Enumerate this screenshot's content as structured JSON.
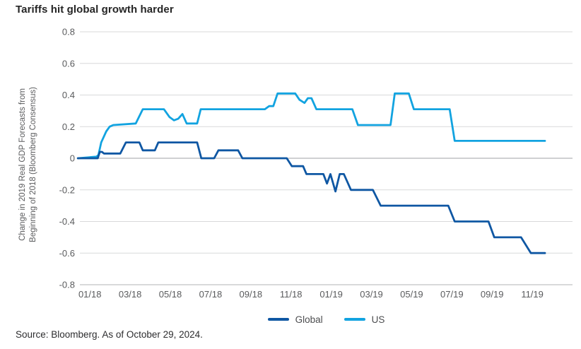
{
  "title": "Tariffs hit global growth harder",
  "source": "Source: Bloomberg. As of October 29, 2024.",
  "legend": {
    "items": [
      {
        "label": "Global",
        "color": "#0F57A3"
      },
      {
        "label": "US",
        "color": "#12A3E0"
      }
    ]
  },
  "colors": {
    "global_line": "#0F57A3",
    "us_line": "#12A3E0",
    "grid": "#D8D9DA",
    "zero_line": "#9FA1A4",
    "axis_line": "#B2B3B5",
    "tick_text": "#5A5B5D"
  },
  "chart_data": {
    "type": "line",
    "title": "Tariffs hit global growth harder",
    "ylabel_lines": [
      "Change in 2019 Real GDP Forecasts from",
      "Beginning of 2018 (Bloomberg Consensus)"
    ],
    "xlabel": "",
    "grid": "horizontal",
    "legend_position": "bottom-center",
    "ylim": [
      -0.8,
      0.8
    ],
    "xlim": [
      -0.5,
      24.0
    ],
    "x_units": "months after first tick (0 = 01/18, 22 = 11/19)",
    "y_tick_labels": [
      "0.8",
      "0.6",
      "0.4",
      "0.2",
      "0",
      "-0.2",
      "-0.4",
      "-0.6",
      "-0.8"
    ],
    "y_tick_values": [
      0.8,
      0.6,
      0.4,
      0.2,
      0,
      -0.2,
      -0.4,
      -0.6,
      -0.8
    ],
    "x_tick_labels": [
      "01/18",
      "03/18",
      "05/18",
      "07/18",
      "09/18",
      "11/18",
      "01/19",
      "03/19",
      "05/19",
      "07/19",
      "09/19",
      "11/19"
    ],
    "x_tick_values": [
      0,
      2,
      4,
      6,
      8,
      10,
      12,
      14,
      16,
      18,
      20,
      22
    ],
    "series": [
      {
        "name": "US",
        "color": "#12A3E0",
        "points": [
          [
            -0.6,
            0.0
          ],
          [
            0.32,
            0.01
          ],
          [
            0.42,
            0.02
          ],
          [
            0.56,
            0.1
          ],
          [
            0.81,
            0.17
          ],
          [
            0.98,
            0.2
          ],
          [
            1.16,
            0.21
          ],
          [
            2.28,
            0.22
          ],
          [
            2.63,
            0.31
          ],
          [
            3.68,
            0.31
          ],
          [
            3.96,
            0.26
          ],
          [
            4.18,
            0.24
          ],
          [
            4.39,
            0.25
          ],
          [
            4.6,
            0.28
          ],
          [
            4.81,
            0.22
          ],
          [
            5.33,
            0.22
          ],
          [
            5.51,
            0.31
          ],
          [
            8.7,
            0.31
          ],
          [
            8.91,
            0.33
          ],
          [
            9.12,
            0.33
          ],
          [
            9.33,
            0.41
          ],
          [
            10.21,
            0.41
          ],
          [
            10.42,
            0.37
          ],
          [
            10.67,
            0.35
          ],
          [
            10.84,
            0.38
          ],
          [
            11.02,
            0.38
          ],
          [
            11.26,
            0.31
          ],
          [
            13.05,
            0.31
          ],
          [
            13.33,
            0.21
          ],
          [
            14.95,
            0.21
          ],
          [
            15.16,
            0.41
          ],
          [
            15.86,
            0.41
          ],
          [
            16.11,
            0.31
          ],
          [
            17.89,
            0.31
          ],
          [
            18.14,
            0.11
          ],
          [
            22.63,
            0.11
          ]
        ]
      },
      {
        "name": "Global",
        "color": "#0F57A3",
        "points": [
          [
            -0.6,
            0.0
          ],
          [
            0.39,
            0.0
          ],
          [
            0.49,
            0.04
          ],
          [
            0.6,
            0.04
          ],
          [
            0.7,
            0.03
          ],
          [
            1.51,
            0.03
          ],
          [
            1.79,
            0.1
          ],
          [
            2.46,
            0.1
          ],
          [
            2.63,
            0.05
          ],
          [
            3.23,
            0.05
          ],
          [
            3.4,
            0.1
          ],
          [
            5.33,
            0.1
          ],
          [
            5.54,
            0.0
          ],
          [
            6.18,
            0.0
          ],
          [
            6.39,
            0.05
          ],
          [
            7.37,
            0.05
          ],
          [
            7.58,
            0.0
          ],
          [
            9.79,
            0.0
          ],
          [
            10.04,
            -0.05
          ],
          [
            10.6,
            -0.05
          ],
          [
            10.77,
            -0.1
          ],
          [
            11.61,
            -0.1
          ],
          [
            11.79,
            -0.16
          ],
          [
            11.96,
            -0.1
          ],
          [
            12.21,
            -0.21
          ],
          [
            12.42,
            -0.1
          ],
          [
            12.63,
            -0.1
          ],
          [
            12.98,
            -0.2
          ],
          [
            14.07,
            -0.2
          ],
          [
            14.46,
            -0.3
          ],
          [
            17.82,
            -0.3
          ],
          [
            18.14,
            -0.4
          ],
          [
            19.82,
            -0.4
          ],
          [
            20.11,
            -0.5
          ],
          [
            21.44,
            -0.5
          ],
          [
            21.93,
            -0.6
          ],
          [
            22.63,
            -0.6
          ]
        ]
      }
    ]
  }
}
